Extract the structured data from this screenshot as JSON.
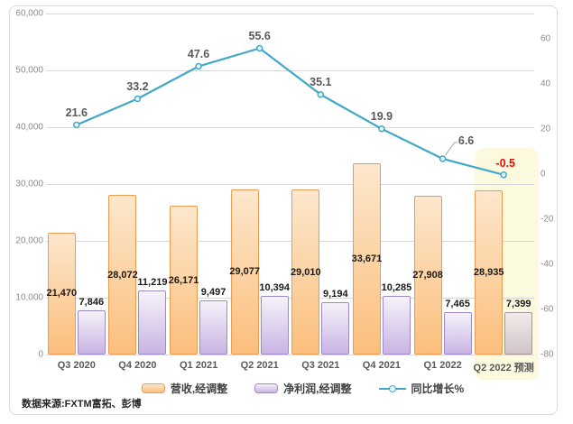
{
  "chart_data": {
    "type": "combo-bar-line",
    "categories": [
      "Q3 2020",
      "Q4 2020",
      "Q1 2021",
      "Q2 2021",
      "Q3 2021",
      "Q4 2021",
      "Q1 2022",
      "Q2 2022 预测"
    ],
    "series": [
      {
        "name": "营收,经调整",
        "type": "bar",
        "axis": "left",
        "values": [
          21470,
          28072,
          26171,
          29077,
          29010,
          33671,
          27908,
          28935
        ],
        "labels": [
          "21,470",
          "28,072",
          "26,171",
          "29,077",
          "29,010",
          "33,671",
          "27,908",
          "28,935"
        ]
      },
      {
        "name": "净利润,经调整",
        "type": "bar",
        "axis": "left",
        "values": [
          7846,
          11219,
          9497,
          10394,
          9194,
          10285,
          7465,
          7399
        ],
        "labels": [
          "7,846",
          "11,219",
          "9,497",
          "10,394",
          "9,194",
          "10,285",
          "7,465",
          "7,399"
        ]
      },
      {
        "name": "同比增长%",
        "type": "line",
        "axis": "right",
        "values": [
          21.6,
          33.2,
          47.6,
          55.6,
          35.1,
          19.9,
          6.6,
          -0.5
        ],
        "labels": [
          "21.6",
          "33.2",
          "47.6",
          "55.6",
          "35.1",
          "19.9",
          "6.6",
          "-0.5"
        ]
      }
    ],
    "left_axis": {
      "min": 0,
      "max": 60000,
      "ticks": [
        "0",
        "10,000",
        "20,000",
        "30,000",
        "40,000",
        "50,000",
        "60,000"
      ]
    },
    "right_axis": {
      "min": -80,
      "max": 60,
      "ticks": [
        "60",
        "40",
        "20",
        "0",
        "-20",
        "-40",
        "-60",
        "-80"
      ]
    },
    "forecast_index": 7,
    "grid": true,
    "legend_position": "bottom"
  },
  "colors": {
    "revenue_fill_top": "#fde7cd",
    "revenue_fill_bottom": "#fbbf7c",
    "revenue_border": "#ec9c52",
    "profit_fill_top": "#f6f2fa",
    "profit_fill_bottom": "#c9b4e3",
    "profit_border": "#a189c9",
    "muted_profit_fill_top": "#f1ebeb",
    "muted_profit_fill_bottom": "#d1c4c9",
    "muted_profit_border": "#a6949c",
    "growth_line": "#41a8c8",
    "marker_fill": "#eaf6fa",
    "negative_label": "#ff0000",
    "highlight": "#fbfadf",
    "gridline": "#d9d9d9",
    "axis_text": "#8c8c8c",
    "label_text": "#595959",
    "value_text": "#1a1a1a",
    "leader_line": "#a6a6a6"
  },
  "source_note": "数据来源:FXTM富拓、彭博"
}
